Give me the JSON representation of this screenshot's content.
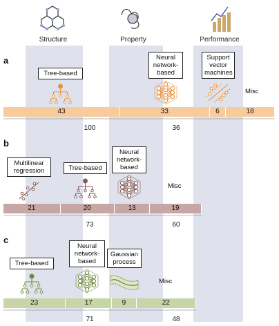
{
  "header": {
    "columns": [
      "Structure",
      "Property",
      "Performance"
    ]
  },
  "panels": [
    {
      "label": "a",
      "methods": [
        [
          "Tree-based"
        ],
        [
          "Neural",
          "network-",
          "based"
        ],
        [
          "Support",
          "vector",
          "machines"
        ]
      ],
      "misc": "Misc",
      "segments": [
        43,
        33,
        6,
        18
      ],
      "totals": [
        100,
        36
      ]
    },
    {
      "label": "b",
      "methods": [
        [
          "Multilinear",
          "regression"
        ],
        [
          "Tree-based"
        ],
        [
          "Neural",
          "network-",
          "based"
        ]
      ],
      "misc": "Misc",
      "segments": [
        21,
        20,
        13,
        19
      ],
      "totals": [
        73,
        60
      ]
    },
    {
      "label": "c",
      "methods": [
        [
          "Tree-based"
        ],
        [
          "Neural",
          "network-",
          "based"
        ],
        [
          "Gaussian",
          "process"
        ]
      ],
      "misc": "Misc",
      "segments": [
        23,
        17,
        9,
        22
      ],
      "totals": [
        71,
        48
      ]
    }
  ]
}
